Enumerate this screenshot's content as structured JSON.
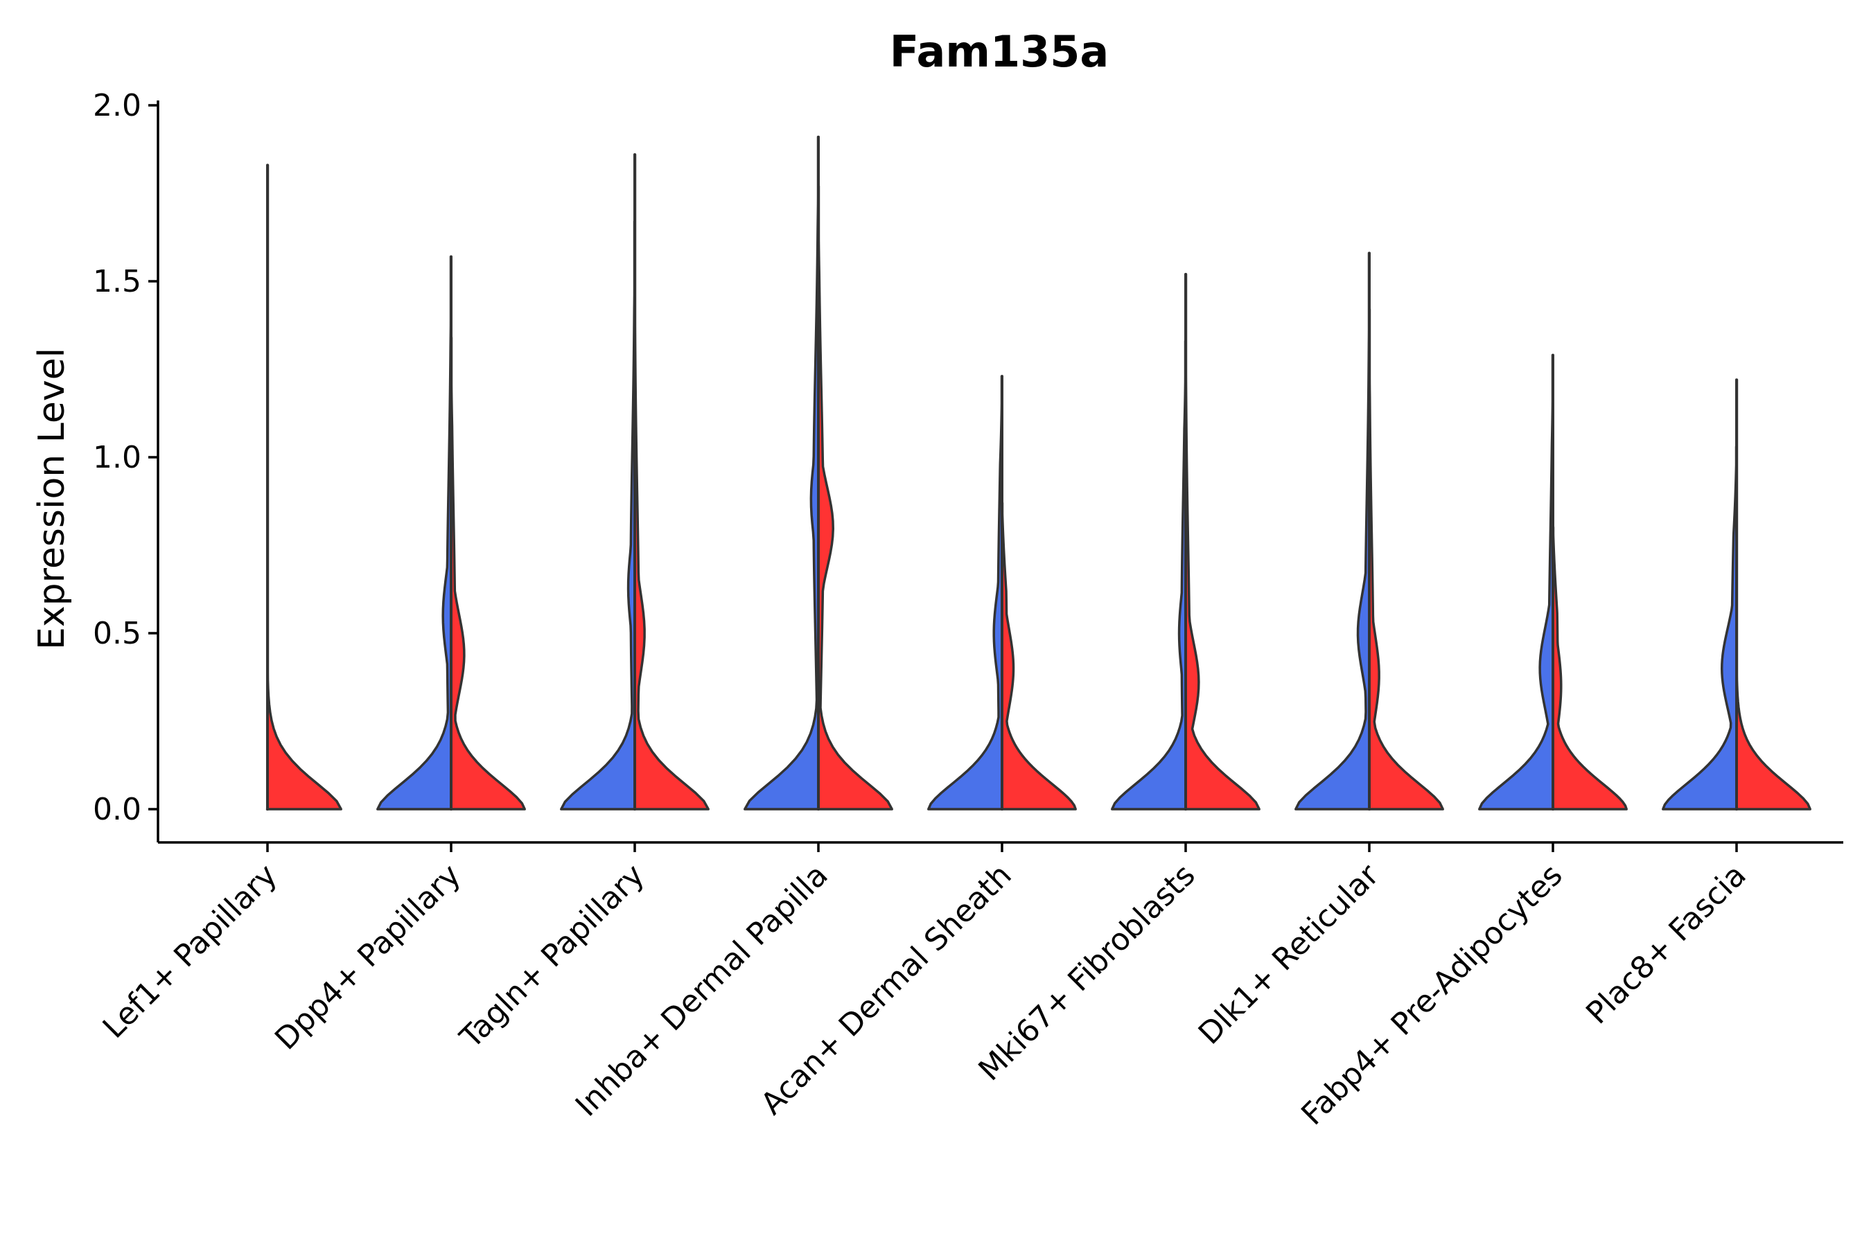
{
  "chart_data": {
    "type": "violin",
    "title": "Fam135a",
    "xlabel": "",
    "ylabel": "Expression Level",
    "ylim": [
      -0.1,
      2.0
    ],
    "yticks": [
      "0.0",
      "0.5",
      "1.0",
      "1.5",
      "2.0"
    ],
    "ytick_values": [
      0.0,
      0.5,
      1.0,
      1.5,
      2.0
    ],
    "categories": [
      "Lef1+ Papillary",
      "Dpp4+ Papillary",
      "Tagln+ Papillary",
      "Inhba+ Dermal Papilla",
      "Acan+ Dermal Sheath",
      "Mki67+ Fibroblasts",
      "Dlk1+ Reticular",
      "Fabp4+ Pre-Adipocytes",
      "Plac8+ Fascia"
    ],
    "series": [
      {
        "name": "blue",
        "color": "#4a72ea",
        "violins": [
          {
            "max": 0.0,
            "zero_width": 0.9,
            "mode": null
          },
          {
            "max": 1.57,
            "zero_width": 0.9,
            "mode": 0.55,
            "mode_width": 0.1,
            "upper_width": 0.05
          },
          {
            "max": 1.67,
            "zero_width": 0.9,
            "mode": 0.63,
            "mode_width": 0.08,
            "upper_width": 0.05
          },
          {
            "max": 1.91,
            "zero_width": 0.9,
            "mode": 0.88,
            "mode_width": 0.09,
            "upper_width": 0.06
          },
          {
            "max": 1.23,
            "zero_width": 0.9,
            "mode": 0.5,
            "mode_width": 0.1,
            "upper_width": 0.05
          },
          {
            "max": 1.33,
            "zero_width": 0.9,
            "mode": 0.5,
            "mode_width": 0.08,
            "upper_width": 0.05
          },
          {
            "max": 1.58,
            "zero_width": 0.9,
            "mode": 0.5,
            "mode_width": 0.14,
            "upper_width": 0.05
          },
          {
            "max": 1.29,
            "zero_width": 0.9,
            "mode": 0.4,
            "mode_width": 0.16,
            "upper_width": 0.05
          },
          {
            "max": 1.03,
            "zero_width": 0.9,
            "mode": 0.4,
            "mode_width": 0.18,
            "upper_width": 0.06
          }
        ]
      },
      {
        "name": "red",
        "color": "#ff3333",
        "violins": [
          {
            "max": 1.83,
            "zero_width": 0.9,
            "mode": null
          },
          {
            "max": 1.34,
            "zero_width": 0.9,
            "mode": 0.44,
            "mode_width": 0.16,
            "upper_width": 0.05
          },
          {
            "max": 1.86,
            "zero_width": 0.9,
            "mode": 0.5,
            "mode_width": 0.12,
            "upper_width": 0.05
          },
          {
            "max": 1.77,
            "zero_width": 0.9,
            "mode": 0.8,
            "mode_width": 0.18,
            "upper_width": 0.06
          },
          {
            "max": 0.87,
            "zero_width": 0.9,
            "mode": 0.4,
            "mode_width": 0.14,
            "upper_width": 0.06
          },
          {
            "max": 1.52,
            "zero_width": 0.9,
            "mode": 0.36,
            "mode_width": 0.16,
            "upper_width": 0.05
          },
          {
            "max": 1.42,
            "zero_width": 0.9,
            "mode": 0.38,
            "mode_width": 0.12,
            "upper_width": 0.05
          },
          {
            "max": 0.81,
            "zero_width": 0.9,
            "mode": 0.35,
            "mode_width": 0.1,
            "upper_width": 0.06
          },
          {
            "max": 1.22,
            "zero_width": 0.9,
            "mode": null
          }
        ]
      }
    ],
    "grid": false,
    "legend": "none"
  }
}
